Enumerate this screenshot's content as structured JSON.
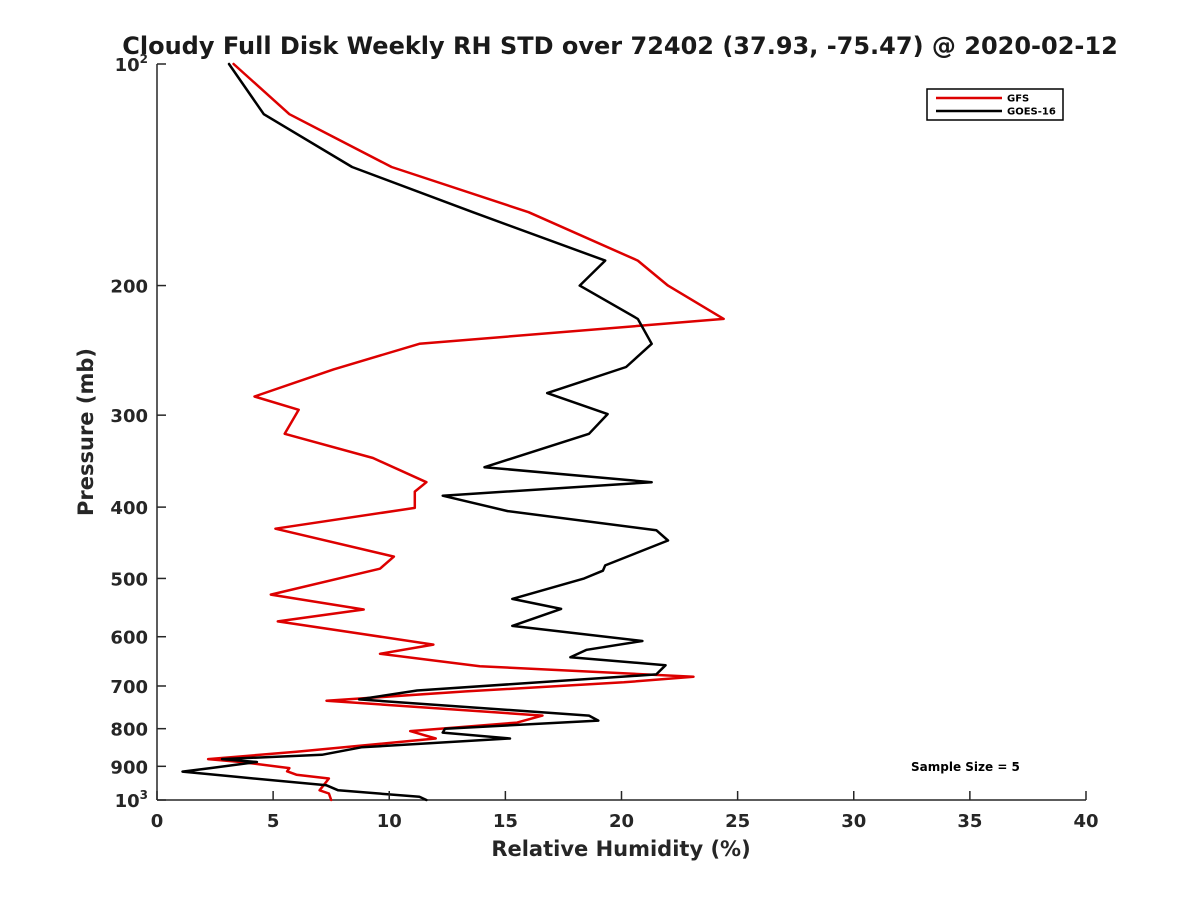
{
  "chart_data": {
    "type": "line",
    "title": "Cloudy Full Disk Weekly RH STD over 72402 (37.93, -75.47) @ 2020-02-12",
    "xlabel": "Relative Humidity (%)",
    "ylabel": "Pressure (mb)",
    "xlim": [
      0,
      40
    ],
    "ylim": [
      1000,
      100
    ],
    "y_scale": "log",
    "y_reversed": true,
    "grid": false,
    "legend_position": "top-right",
    "x_ticks": [
      0,
      5,
      10,
      15,
      20,
      25,
      30,
      35,
      40
    ],
    "x_tick_labels": [
      "0",
      "5",
      "10",
      "15",
      "20",
      "25",
      "30",
      "35",
      "40"
    ],
    "y_ticks": [
      {
        "value": 100,
        "base": "10",
        "exp": "2"
      },
      {
        "value": 200,
        "label": "200"
      },
      {
        "value": 300,
        "label": "300"
      },
      {
        "value": 400,
        "label": "400"
      },
      {
        "value": 500,
        "label": "500"
      },
      {
        "value": 600,
        "label": "600"
      },
      {
        "value": 700,
        "label": "700"
      },
      {
        "value": 800,
        "label": "800"
      },
      {
        "value": 900,
        "label": "900"
      },
      {
        "value": 1000,
        "base": "10",
        "exp": "3"
      }
    ],
    "annotation": "Sample Size = 5",
    "series": [
      {
        "name": "GFS",
        "color": "#dd0000",
        "points": [
          [
            3.3,
            100
          ],
          [
            5.7,
            117
          ],
          [
            10.1,
            138
          ],
          [
            16,
            159
          ],
          [
            20.7,
            185
          ],
          [
            22,
            200
          ],
          [
            24.4,
            222
          ],
          [
            11.3,
            240
          ],
          [
            7.6,
            260
          ],
          [
            4.2,
            283
          ],
          [
            6.1,
            295
          ],
          [
            5.5,
            318
          ],
          [
            9.3,
            343
          ],
          [
            11.6,
            370
          ],
          [
            11.1,
            381
          ],
          [
            11.1,
            401
          ],
          [
            5.1,
            428
          ],
          [
            10.2,
            467
          ],
          [
            9.6,
            485
          ],
          [
            4.9,
            526
          ],
          [
            8.9,
            551
          ],
          [
            5.2,
            572
          ],
          [
            11.9,
            615
          ],
          [
            9.6,
            633
          ],
          [
            13.9,
            658
          ],
          [
            23.1,
            680
          ],
          [
            20.1,
            692
          ],
          [
            13.3,
            712
          ],
          [
            7.3,
            733
          ],
          [
            16.6,
            768
          ],
          [
            15.5,
            785
          ],
          [
            10.9,
            806
          ],
          [
            12,
            825
          ],
          [
            6,
            860
          ],
          [
            2.2,
            880
          ],
          [
            3.6,
            888
          ],
          [
            5.7,
            905
          ],
          [
            5.6,
            914
          ],
          [
            6,
            924
          ],
          [
            7.4,
            935
          ],
          [
            7,
            970
          ],
          [
            7.4,
            980
          ],
          [
            7.5,
            1000
          ]
        ]
      },
      {
        "name": "GOES-16",
        "color": "#000000",
        "points": [
          [
            3.1,
            100
          ],
          [
            4.6,
            117
          ],
          [
            8.4,
            138
          ],
          [
            13.6,
            159
          ],
          [
            19.3,
            185
          ],
          [
            18.2,
            200
          ],
          [
            20.7,
            222
          ],
          [
            21.3,
            240
          ],
          [
            20.2,
            258
          ],
          [
            16.8,
            280
          ],
          [
            19.4,
            299
          ],
          [
            18.6,
            318
          ],
          [
            14.1,
            353
          ],
          [
            21.3,
            370
          ],
          [
            12.3,
            386
          ],
          [
            15.1,
            405
          ],
          [
            21.5,
            430
          ],
          [
            22,
            444
          ],
          [
            19.3,
            480
          ],
          [
            19.2,
            488
          ],
          [
            18.4,
            500
          ],
          [
            15.3,
            533
          ],
          [
            17.4,
            550
          ],
          [
            15.3,
            580
          ],
          [
            20.9,
            608
          ],
          [
            18.5,
            625
          ],
          [
            17.8,
            640
          ],
          [
            21.9,
            656
          ],
          [
            21.5,
            675
          ],
          [
            11.2,
            710
          ],
          [
            8.7,
            730
          ],
          [
            18.6,
            768
          ],
          [
            19,
            780
          ],
          [
            12.4,
            800
          ],
          [
            12.3,
            810
          ],
          [
            15.2,
            825
          ],
          [
            8.8,
            848
          ],
          [
            7.1,
            868
          ],
          [
            2.8,
            880
          ],
          [
            4.3,
            888
          ],
          [
            2.3,
            905
          ],
          [
            1.1,
            915
          ],
          [
            3.4,
            930
          ],
          [
            7.3,
            955
          ],
          [
            7.8,
            970
          ],
          [
            11.3,
            990
          ],
          [
            11.6,
            1000
          ]
        ]
      }
    ]
  }
}
